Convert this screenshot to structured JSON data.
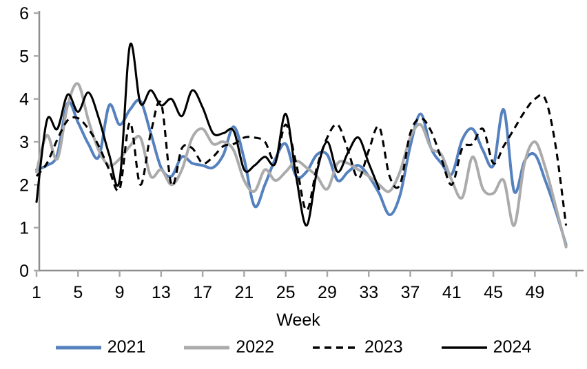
{
  "chart_data": {
    "type": "line",
    "title": "",
    "xlabel": "Week",
    "ylabel": "",
    "ylim": [
      0,
      6
    ],
    "xlim": [
      1,
      53
    ],
    "y_ticks": [
      0,
      1,
      2,
      3,
      4,
      5,
      6
    ],
    "x_ticks": [
      1,
      5,
      9,
      13,
      17,
      21,
      25,
      29,
      33,
      37,
      41,
      45,
      49
    ],
    "axis_end_tick_week": 53,
    "grid": "off",
    "legend_position": "bottom",
    "x_unit": "week",
    "x_start": 1,
    "smoothing": "spline",
    "series": [
      {
        "name": "2021",
        "color": "#5581BE",
        "style": "solid",
        "values": [
          2.35,
          2.45,
          2.7,
          3.9,
          3.45,
          2.95,
          2.65,
          3.85,
          3.4,
          3.75,
          3.95,
          3.2,
          2.4,
          2.2,
          2.65,
          2.5,
          2.45,
          2.4,
          2.7,
          3.35,
          2.6,
          1.5,
          2.0,
          2.6,
          2.95,
          2.2,
          2.3,
          2.7,
          2.7,
          2.1,
          2.3,
          2.45,
          2.2,
          1.8,
          1.3,
          1.75,
          2.9,
          3.65,
          2.85,
          2.5,
          2.25,
          3.05,
          3.3,
          2.8,
          2.45,
          3.75,
          1.85,
          2.55,
          2.7,
          2.1,
          1.4,
          0.6
        ]
      },
      {
        "name": "2022",
        "color": "#ABABAB",
        "style": "solid",
        "values": [
          2.3,
          3.15,
          2.6,
          3.85,
          4.35,
          3.5,
          2.8,
          2.45,
          2.6,
          2.9,
          3.1,
          2.2,
          2.35,
          2.0,
          2.35,
          3.1,
          3.3,
          2.95,
          3.0,
          2.8,
          2.1,
          1.85,
          2.35,
          2.1,
          2.3,
          2.55,
          2.4,
          2.2,
          1.9,
          2.5,
          2.5,
          2.35,
          2.2,
          2.0,
          1.85,
          2.3,
          3.1,
          3.4,
          2.85,
          2.7,
          2.1,
          1.7,
          2.65,
          1.9,
          1.8,
          2.1,
          1.05,
          2.5,
          3.0,
          2.4,
          1.5,
          0.55
        ]
      },
      {
        "name": "2023",
        "color": "#000000",
        "style": "dashed",
        "values": [
          2.2,
          2.5,
          3.05,
          3.5,
          3.55,
          3.3,
          2.9,
          2.35,
          1.9,
          3.45,
          2.0,
          3.2,
          3.9,
          2.0,
          2.85,
          2.85,
          2.5,
          2.65,
          2.9,
          2.95,
          3.1,
          3.1,
          3.0,
          2.55,
          3.4,
          2.5,
          1.4,
          2.4,
          3.1,
          3.4,
          2.8,
          2.15,
          2.8,
          3.35,
          2.2,
          2.0,
          3.2,
          3.55,
          3.25,
          2.6,
          2.0,
          2.85,
          2.95,
          3.3,
          2.5,
          2.9,
          3.3,
          3.7,
          4.0,
          4.0,
          2.9,
          1.05
        ]
      },
      {
        "name": "2024",
        "color": "#000000",
        "style": "solid",
        "values": [
          1.6,
          3.5,
          3.3,
          4.1,
          3.7,
          4.15,
          3.55,
          2.7,
          2.1,
          5.25,
          3.9,
          4.2,
          3.85,
          4.0,
          3.6,
          4.2,
          3.8,
          3.2,
          3.2,
          3.25,
          2.35,
          2.45,
          2.65,
          2.5,
          3.65,
          2.2,
          1.05,
          2.3,
          3.0,
          2.3,
          2.75,
          3.1,
          2.5,
          1.9
        ]
      }
    ]
  },
  "axes_style": {
    "axis_line_color": "#8E8E8E",
    "tick_color": "#A9A9A9",
    "label_color": "#000000"
  },
  "legend": {
    "items": [
      {
        "label": "2021"
      },
      {
        "label": "2022"
      },
      {
        "label": "2023"
      },
      {
        "label": "2024"
      }
    ]
  }
}
